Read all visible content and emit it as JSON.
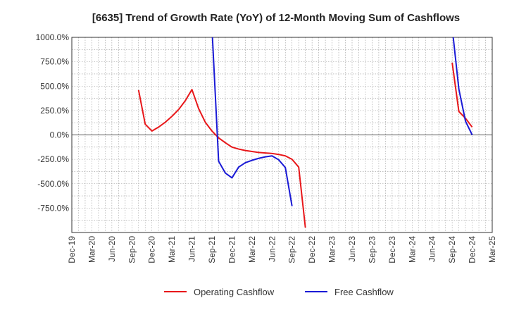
{
  "chart_data": {
    "type": "line",
    "title": "[6635]  Trend of Growth Rate (YoY) of 12-Month Moving Sum of Cashflows",
    "xlabel": "",
    "ylabel": "",
    "ylim": [
      -1000,
      1000
    ],
    "grid": true,
    "legend_position": "bottom",
    "y_ticks": [
      {
        "value": 1000,
        "label": "1000.0%"
      },
      {
        "value": 750,
        "label": "750.0%"
      },
      {
        "value": 500,
        "label": "500.0%"
      },
      {
        "value": 250,
        "label": "250.0%"
      },
      {
        "value": 0,
        "label": "0.0%"
      },
      {
        "value": -250,
        "label": "-250.0%"
      },
      {
        "value": -500,
        "label": "-500.0%"
      },
      {
        "value": -750,
        "label": "-750.0%"
      }
    ],
    "x_ticks": [
      "Dec-19",
      "Mar-20",
      "Jun-20",
      "Sep-20",
      "Dec-20",
      "Mar-21",
      "Jun-21",
      "Sep-21",
      "Dec-21",
      "Mar-22",
      "Jun-22",
      "Sep-22",
      "Dec-22",
      "Mar-23",
      "Jun-23",
      "Sep-23",
      "Dec-23",
      "Mar-24",
      "Jun-24",
      "Sep-24",
      "Dec-24",
      "Mar-25"
    ],
    "series": [
      {
        "name": "Operating Cashflow",
        "color": "#e8171a",
        "points": [
          {
            "x": "Oct-20",
            "y": 460
          },
          {
            "x": "Nov-20",
            "y": 110
          },
          {
            "x": "Dec-20",
            "y": 40
          },
          {
            "x": "Jan-21",
            "y": 80
          },
          {
            "x": "Feb-21",
            "y": 130
          },
          {
            "x": "Mar-21",
            "y": 190
          },
          {
            "x": "Apr-21",
            "y": 260
          },
          {
            "x": "May-21",
            "y": 350
          },
          {
            "x": "Jun-21",
            "y": 465
          },
          {
            "x": "Jul-21",
            "y": 270
          },
          {
            "x": "Aug-21",
            "y": 130
          },
          {
            "x": "Sep-21",
            "y": 40
          },
          {
            "x": "Oct-21",
            "y": -30
          },
          {
            "x": "Nov-21",
            "y": -80
          },
          {
            "x": "Dec-21",
            "y": -125
          },
          {
            "x": "Jan-22",
            "y": -145
          },
          {
            "x": "Feb-22",
            "y": -160
          },
          {
            "x": "Mar-22",
            "y": -170
          },
          {
            "x": "Apr-22",
            "y": -180
          },
          {
            "x": "May-22",
            "y": -185
          },
          {
            "x": "Jun-22",
            "y": -190
          },
          {
            "x": "Jul-22",
            "y": -200
          },
          {
            "x": "Aug-22",
            "y": -215
          },
          {
            "x": "Sep-22",
            "y": -250
          },
          {
            "x": "Oct-22",
            "y": -330
          },
          {
            "x": "Nov-22",
            "y": -950
          },
          {
            "x": "Sep-24",
            "y": 740
          },
          {
            "x": "Oct-24",
            "y": 240
          },
          {
            "x": "Nov-24",
            "y": 170
          },
          {
            "x": "Dec-24",
            "y": 80
          }
        ]
      },
      {
        "name": "Free Cashflow",
        "color": "#1a1ad6",
        "points": [
          {
            "x": "Sep-21",
            "y": 1100
          },
          {
            "x": "Oct-21",
            "y": -270
          },
          {
            "x": "Nov-21",
            "y": -390
          },
          {
            "x": "Dec-21",
            "y": -440
          },
          {
            "x": "Jan-22",
            "y": -330
          },
          {
            "x": "Feb-22",
            "y": -285
          },
          {
            "x": "Mar-22",
            "y": -260
          },
          {
            "x": "Apr-22",
            "y": -240
          },
          {
            "x": "May-22",
            "y": -225
          },
          {
            "x": "Jun-22",
            "y": -215
          },
          {
            "x": "Jul-22",
            "y": -255
          },
          {
            "x": "Aug-22",
            "y": -335
          },
          {
            "x": "Sep-22",
            "y": -730
          },
          {
            "x": "Sep-24",
            "y": 1100
          },
          {
            "x": "Oct-24",
            "y": 470
          },
          {
            "x": "Nov-24",
            "y": 140
          },
          {
            "x": "Dec-24",
            "y": 0
          }
        ]
      }
    ]
  }
}
